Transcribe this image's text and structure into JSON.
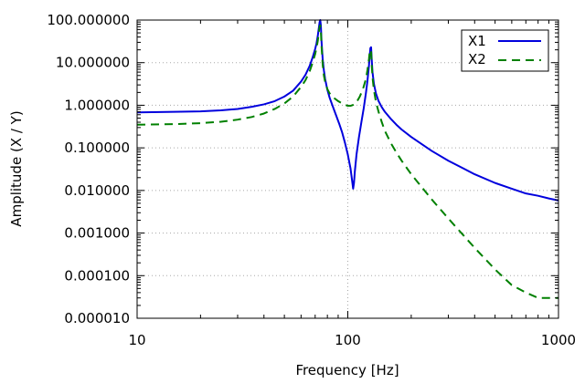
{
  "chart_data": {
    "type": "line",
    "xlabel": "Frequency [Hz]",
    "ylabel": "Amplitude (X / Y)",
    "xscale": "log",
    "yscale": "log",
    "xlim": [
      10,
      1000
    ],
    "ylim": [
      1e-05,
      100
    ],
    "grid": true,
    "legend_position": "top-right",
    "x_ticks": [
      {
        "value": 10,
        "label": "10"
      },
      {
        "value": 100,
        "label": "100"
      },
      {
        "value": 1000,
        "label": "1000"
      }
    ],
    "y_ticks": [
      {
        "value": 100,
        "label": "100.000000"
      },
      {
        "value": 10,
        "label": "10.000000"
      },
      {
        "value": 1,
        "label": "1.000000"
      },
      {
        "value": 0.1,
        "label": "0.100000"
      },
      {
        "value": 0.01,
        "label": "0.010000"
      },
      {
        "value": 0.001,
        "label": "0.001000"
      },
      {
        "value": 0.0001,
        "label": "0.000100"
      },
      {
        "value": 1e-05,
        "label": "0.000010"
      }
    ],
    "series": [
      {
        "name": "X1",
        "color": "#0000dd",
        "style": "solid",
        "x": [
          10,
          15,
          20,
          25,
          30,
          35,
          40,
          45,
          50,
          55,
          60,
          63,
          66,
          68,
          70,
          71,
          72,
          73,
          73.5,
          74,
          74.5,
          75,
          76,
          77,
          78,
          80,
          82,
          85,
          88,
          91,
          94,
          97,
          100,
          103,
          105,
          106,
          107,
          108,
          110,
          113,
          116,
          119,
          122,
          124,
          126,
          127,
          128,
          129,
          130,
          131,
          133,
          136,
          140,
          145,
          150,
          160,
          170,
          180,
          200,
          250,
          300,
          400,
          500,
          600,
          700,
          800,
          900,
          1000
        ],
        "values": [
          0.68,
          0.7,
          0.72,
          0.76,
          0.82,
          0.92,
          1.05,
          1.25,
          1.6,
          2.2,
          3.6,
          5.2,
          8.5,
          13.0,
          21.0,
          28.0,
          42.0,
          70.0,
          90.0,
          100.0,
          75.0,
          33.0,
          12.0,
          6.6,
          4.2,
          2.3,
          1.5,
          0.92,
          0.58,
          0.37,
          0.23,
          0.13,
          0.07,
          0.033,
          0.016,
          0.011,
          0.015,
          0.028,
          0.07,
          0.18,
          0.4,
          0.85,
          2.0,
          3.8,
          8.5,
          14.0,
          22.0,
          23.0,
          11.0,
          6.0,
          3.2,
          1.9,
          1.25,
          0.9,
          0.7,
          0.48,
          0.35,
          0.27,
          0.18,
          0.085,
          0.05,
          0.024,
          0.015,
          0.011,
          0.0085,
          0.0075,
          0.0065,
          0.0058
        ]
      },
      {
        "name": "X2",
        "color": "#008000",
        "style": "dashed",
        "x": [
          10,
          15,
          20,
          25,
          30,
          35,
          40,
          45,
          50,
          55,
          60,
          63,
          66,
          68,
          70,
          71,
          72,
          73,
          73.5,
          74,
          74.5,
          75,
          76,
          77,
          78,
          80,
          82,
          85,
          90,
          95,
          100,
          103,
          106,
          110,
          114,
          118,
          122,
          124,
          126,
          127,
          128,
          129,
          130,
          131,
          133,
          136,
          140,
          145,
          150,
          160,
          170,
          180,
          200,
          250,
          300,
          400,
          500,
          600,
          700,
          800,
          900,
          1000
        ],
        "values": [
          0.35,
          0.36,
          0.38,
          0.41,
          0.46,
          0.53,
          0.64,
          0.82,
          1.1,
          1.6,
          2.7,
          3.9,
          6.4,
          9.8,
          16.0,
          22.0,
          32.0,
          55.0,
          70.0,
          75.0,
          58.0,
          26.0,
          9.0,
          5.0,
          3.6,
          2.4,
          1.9,
          1.55,
          1.25,
          1.07,
          0.97,
          0.97,
          1.02,
          1.18,
          1.6,
          2.4,
          4.2,
          6.8,
          12.0,
          18.0,
          20.0,
          19.0,
          8.5,
          4.5,
          2.3,
          1.2,
          0.7,
          0.4,
          0.25,
          0.13,
          0.078,
          0.05,
          0.024,
          0.0062,
          0.0022,
          0.00045,
          0.00014,
          6e-05,
          4e-05,
          3e-05,
          3e-05,
          3e-05
        ]
      }
    ]
  }
}
